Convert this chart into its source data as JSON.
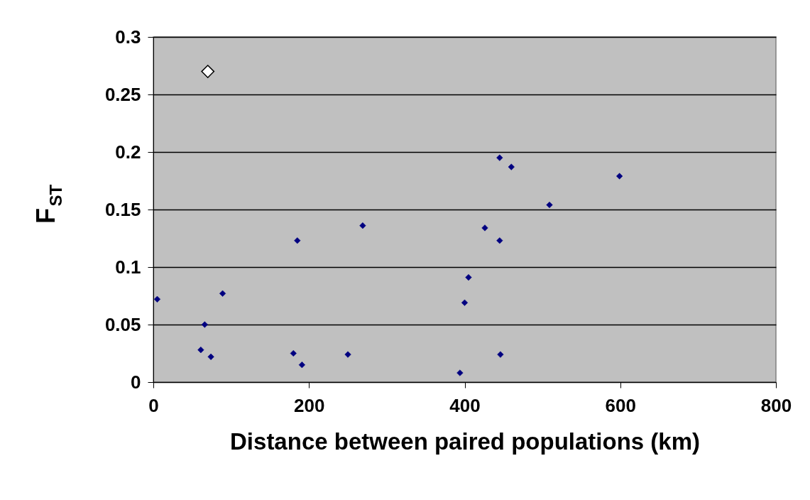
{
  "chart_data": {
    "type": "scatter",
    "xlabel": "Distance between paired populations (km)",
    "ylabel": "F$_{ST}$",
    "series": [
      {
        "color": "#000080",
        "x": [
          5,
          61,
          66,
          74,
          89,
          180,
          185,
          191,
          250,
          269,
          394,
          400,
          405,
          426,
          445,
          446,
          445,
          460,
          509,
          599
        ],
        "values": [
          0.072,
          0.028,
          0.05,
          0.022,
          0.077,
          0.025,
          0.123,
          0.015,
          0.024,
          0.136,
          0.008,
          0.069,
          0.091,
          0.134,
          0.123,
          0.024,
          0.195,
          0.187,
          0.154,
          0.179
        ]
      },
      {
        "color": "#ffffff",
        "x": [
          70
        ],
        "values": [
          0.27
        ]
      }
    ],
    "xlim": [
      0,
      800
    ],
    "xticks": [
      0,
      200,
      400,
      600,
      800
    ],
    "ylim": [
      0,
      0.3
    ],
    "yticks": [
      0,
      0.05,
      0.1,
      0.15,
      0.2,
      0.25,
      0.3
    ],
    "grid": "y",
    "marker": "diamond"
  }
}
